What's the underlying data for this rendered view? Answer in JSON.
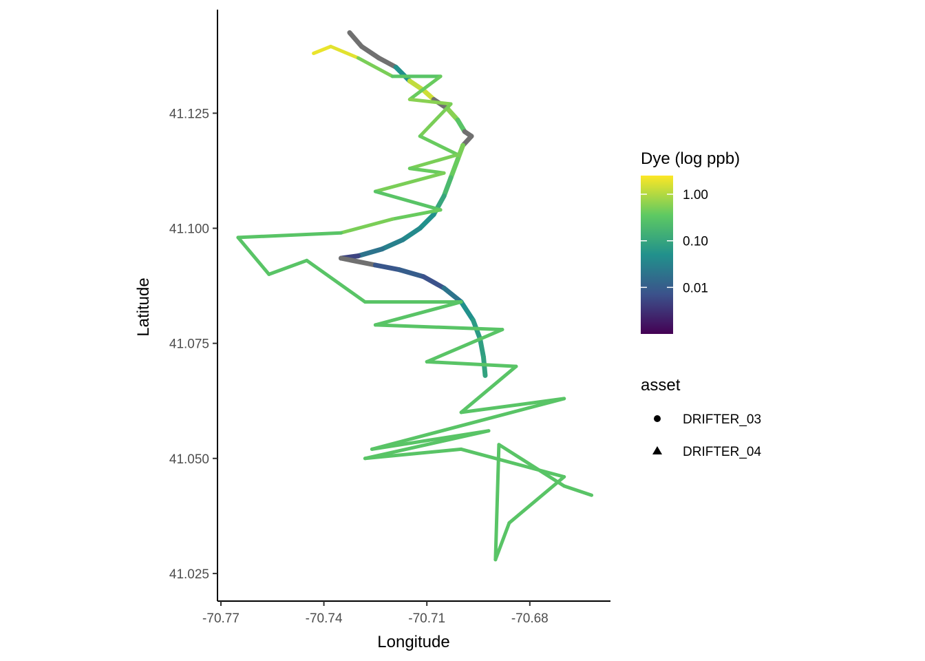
{
  "chart_data": {
    "type": "scatter",
    "xlabel": "Longitude",
    "ylabel": "Latitude",
    "xlim": [
      -70.771,
      -70.6565
    ],
    "ylim": [
      41.019,
      41.1475
    ],
    "x_ticks": [
      {
        "value": -70.77,
        "label": "-70.77"
      },
      {
        "value": -70.74,
        "label": "-70.74"
      },
      {
        "value": -70.71,
        "label": "-70.71"
      },
      {
        "value": -70.68,
        "label": "-70.68"
      }
    ],
    "y_ticks": [
      {
        "value": 41.025,
        "label": "41.025"
      },
      {
        "value": 41.05,
        "label": "41.050"
      },
      {
        "value": 41.075,
        "label": "41.075"
      },
      {
        "value": 41.1,
        "label": "41.100"
      },
      {
        "value": 41.125,
        "label": "41.125"
      }
    ],
    "grid": false,
    "legend_placement": "right",
    "missing_color": "#707070",
    "color_legend": {
      "title": "Dye (log ppb)",
      "scale": "log10",
      "palette": "viridis",
      "colors": [
        "#440154",
        "#3b528b",
        "#21918c",
        "#5ec962",
        "#fde725"
      ],
      "log_range": [
        -3.0,
        0.4
      ],
      "breaks": [
        {
          "value": 1.0,
          "label": "1.00"
        },
        {
          "value": 0.1,
          "label": "0.10"
        },
        {
          "value": 0.01,
          "label": "0.01"
        }
      ]
    },
    "shape_legend": {
      "title": "asset",
      "entries": [
        {
          "label": "DRIFTER_03",
          "shape": "circle"
        },
        {
          "label": "DRIFTER_04",
          "shape": "triangle"
        }
      ]
    },
    "series": [
      {
        "asset": "DRIFTER_03",
        "description": "main drifter track",
        "points": [
          [
            -70.7325,
            41.1425,
            null
          ],
          [
            -70.729,
            41.1395,
            null
          ],
          [
            -70.724,
            41.137,
            null
          ],
          [
            -70.719,
            41.135,
            0.05
          ],
          [
            -70.715,
            41.132,
            1.2
          ],
          [
            -70.711,
            41.13,
            1.4
          ],
          [
            -70.708,
            41.128,
            null
          ],
          [
            -70.704,
            41.126,
            0.6
          ],
          [
            -70.701,
            41.1235,
            0.3
          ],
          [
            -70.699,
            41.121,
            null
          ],
          [
            -70.697,
            41.12,
            null
          ],
          [
            -70.6995,
            41.118,
            0.5
          ],
          [
            -70.701,
            41.115,
            0.4
          ],
          [
            -70.703,
            41.111,
            0.2
          ],
          [
            -70.705,
            41.107,
            0.1
          ],
          [
            -70.708,
            41.103,
            0.05
          ],
          [
            -70.712,
            41.1,
            0.04
          ],
          [
            -70.717,
            41.0975,
            0.03
          ],
          [
            -70.723,
            41.0955,
            0.02
          ],
          [
            -70.73,
            41.094,
            0.005
          ],
          [
            -70.735,
            41.0935,
            null
          ],
          [
            -70.725,
            41.092,
            0.008
          ],
          [
            -70.718,
            41.091,
            0.01
          ],
          [
            -70.711,
            41.0895,
            0.007
          ],
          [
            -70.705,
            41.087,
            0.02
          ],
          [
            -70.7,
            41.084,
            0.05
          ],
          [
            -70.6965,
            41.08,
            0.07
          ],
          [
            -70.6945,
            41.076,
            0.08
          ],
          [
            -70.6935,
            41.072,
            0.09
          ],
          [
            -70.693,
            41.068,
            0.1
          ]
        ]
      },
      {
        "asset": "DRIFTER_04",
        "description": "survey track",
        "points": [
          [
            -70.743,
            41.138,
            2.0
          ],
          [
            -70.738,
            41.1395,
            1.8
          ],
          [
            -70.73,
            41.137,
            0.5
          ],
          [
            -70.72,
            41.133,
            0.3
          ],
          [
            -70.706,
            41.133,
            0.4
          ],
          [
            -70.715,
            41.128,
            0.6
          ],
          [
            -70.703,
            41.127,
            0.5
          ],
          [
            -70.712,
            41.12,
            0.4
          ],
          [
            -70.701,
            41.116,
            0.5
          ],
          [
            -70.715,
            41.113,
            0.4
          ],
          [
            -70.705,
            41.112,
            0.5
          ],
          [
            -70.725,
            41.108,
            0.3
          ],
          [
            -70.706,
            41.104,
            0.4
          ],
          [
            -70.72,
            41.102,
            0.5
          ],
          [
            -70.735,
            41.099,
            0.3
          ],
          [
            -70.765,
            41.098,
            0.3
          ],
          [
            -70.756,
            41.09,
            0.3
          ],
          [
            -70.745,
            41.093,
            0.3
          ],
          [
            -70.728,
            41.084,
            0.3
          ],
          [
            -70.7,
            41.084,
            0.3
          ],
          [
            -70.725,
            41.079,
            0.3
          ],
          [
            -70.688,
            41.078,
            0.3
          ],
          [
            -70.71,
            41.071,
            0.3
          ],
          [
            -70.684,
            41.07,
            0.3
          ],
          [
            -70.7,
            41.06,
            0.3
          ],
          [
            -70.67,
            41.063,
            0.3
          ],
          [
            -70.726,
            41.052,
            0.3
          ],
          [
            -70.692,
            41.056,
            0.3
          ],
          [
            -70.728,
            41.05,
            0.3
          ],
          [
            -70.7,
            41.052,
            0.3
          ],
          [
            -70.67,
            41.046,
            0.3
          ],
          [
            -70.686,
            41.036,
            0.3
          ],
          [
            -70.69,
            41.028,
            0.3
          ],
          [
            -70.689,
            41.053,
            0.3
          ],
          [
            -70.67,
            41.044,
            0.3
          ],
          [
            -70.662,
            41.042,
            0.3
          ]
        ]
      }
    ]
  }
}
